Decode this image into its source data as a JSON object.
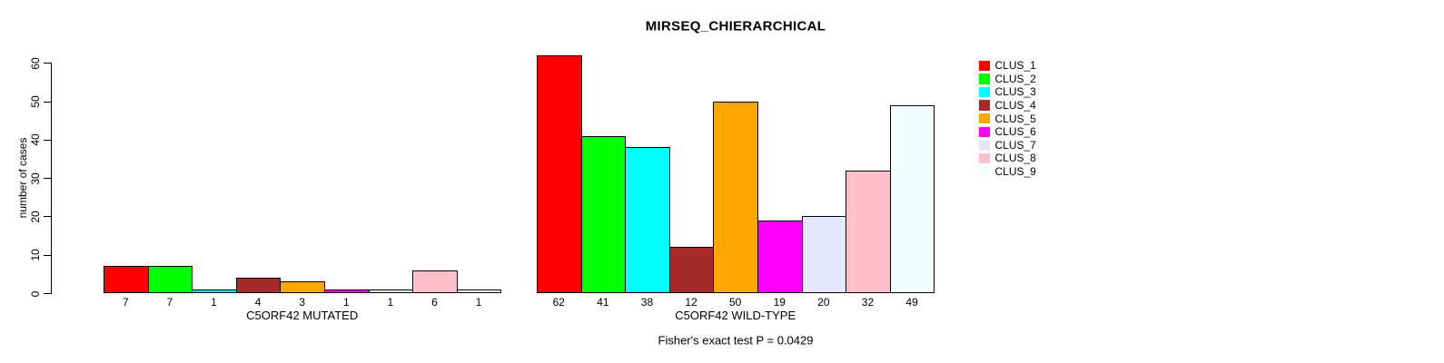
{
  "chart_data": {
    "type": "bar",
    "title": "MIRSEQ_CHIERARCHICAL",
    "ylabel": "number of cases",
    "xlabel": "",
    "ylim": [
      0,
      62
    ],
    "yticks": [
      0,
      10,
      20,
      30,
      40,
      50,
      60
    ],
    "grid": false,
    "legend_position": "top-right",
    "categories": [
      "C5ORF42 MUTATED",
      "C5ORF42 WILD-TYPE"
    ],
    "series": [
      {
        "name": "CLUS_1",
        "color": "#FF0000",
        "values": [
          7,
          62
        ]
      },
      {
        "name": "CLUS_2",
        "color": "#00FF00",
        "values": [
          7,
          41
        ]
      },
      {
        "name": "CLUS_3",
        "color": "#00FFFF",
        "values": [
          1,
          38
        ]
      },
      {
        "name": "CLUS_4",
        "color": "#A52A2A",
        "values": [
          4,
          12
        ]
      },
      {
        "name": "CLUS_5",
        "color": "#FFA500",
        "values": [
          3,
          50
        ]
      },
      {
        "name": "CLUS_6",
        "color": "#FF00FF",
        "values": [
          1,
          19
        ]
      },
      {
        "name": "CLUS_7",
        "color": "#E6E6FA",
        "values": [
          1,
          20
        ]
      },
      {
        "name": "CLUS_8",
        "color": "#FFC0CB",
        "values": [
          6,
          32
        ]
      },
      {
        "name": "CLUS_9",
        "color": "#F0FFFF",
        "values": [
          1,
          49
        ]
      }
    ],
    "bar_value_labels_shown": true,
    "annotation": "Fisher's exact test P = 0.0429",
    "colors": {
      "axis": "#000000",
      "bar_border": "#000000",
      "background": "#FFFFFF"
    }
  }
}
